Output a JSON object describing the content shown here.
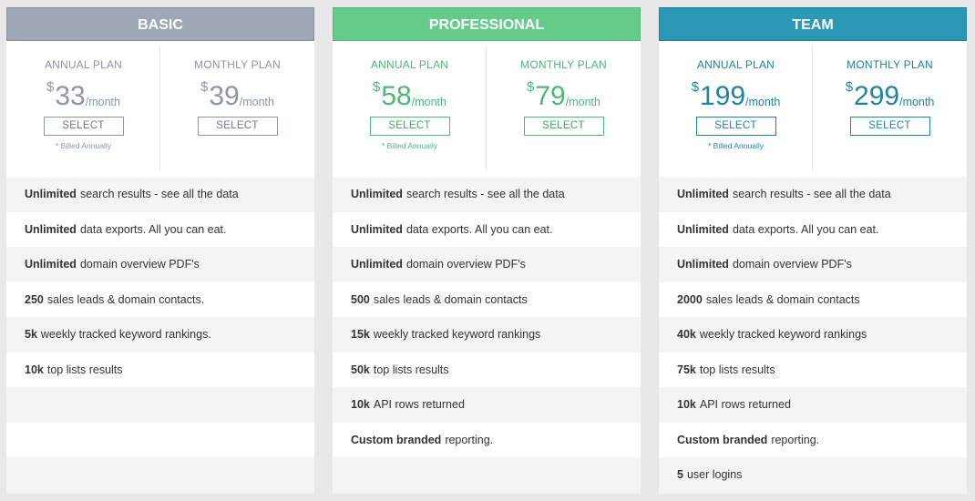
{
  "colors": {
    "basic": "#a0a8b8",
    "professional": "#64cb88",
    "team": "#2b98b5"
  },
  "plans": [
    {
      "name": "BASIC",
      "annual_label": "ANNUAL PLAN",
      "monthly_label": "MONTHLY PLAN",
      "currency": "$",
      "annual_price": "33",
      "monthly_price": "39",
      "per": "/month",
      "select_label": "SELECT",
      "billed_note": "* Billed Annually",
      "features": [
        {
          "bold": "Unlimited",
          "text": "search results - see all the data"
        },
        {
          "bold": "Unlimited",
          "text": "data exports. All you can eat."
        },
        {
          "bold": "Unlimited",
          "text": "domain overview PDF's"
        },
        {
          "bold": "250",
          "text": "sales leads & domain contacts."
        },
        {
          "bold": "5k",
          "text": "weekly tracked keyword rankings."
        },
        {
          "bold": "10k",
          "text": "top lists results"
        },
        {
          "bold": "",
          "text": ""
        },
        {
          "bold": "",
          "text": ""
        },
        {
          "bold": "",
          "text": ""
        }
      ]
    },
    {
      "name": "PROFESSIONAL",
      "annual_label": "ANNUAL PLAN",
      "monthly_label": "MONTHLY PLAN",
      "currency": "$",
      "annual_price": "58",
      "monthly_price": "79",
      "per": "/month",
      "select_label": "SELECT",
      "billed_note": "* Billed Annually",
      "features": [
        {
          "bold": "Unlimited",
          "text": "search results - see all the data"
        },
        {
          "bold": "Unlimited",
          "text": "data exports. All you can eat."
        },
        {
          "bold": "Unlimited",
          "text": "domain overview PDF's"
        },
        {
          "bold": "500",
          "text": "sales leads & domain contacts"
        },
        {
          "bold": "15k",
          "text": "weekly tracked keyword rankings"
        },
        {
          "bold": "50k",
          "text": "top lists results"
        },
        {
          "bold": "10k",
          "text": "API rows returned"
        },
        {
          "bold": "Custom branded",
          "text": "reporting."
        },
        {
          "bold": "",
          "text": ""
        }
      ]
    },
    {
      "name": "TEAM",
      "annual_label": "ANNUAL PLAN",
      "monthly_label": "MONTHLY PLAN",
      "currency": "$",
      "annual_price": "199",
      "monthly_price": "299",
      "per": "/month",
      "select_label": "SELECT",
      "billed_note": "* Billed Annually",
      "features": [
        {
          "bold": "Unlimited",
          "text": "search results - see all the data"
        },
        {
          "bold": "Unlimited",
          "text": "data exports. All you can eat."
        },
        {
          "bold": "Unlimited",
          "text": "domain overview PDF's"
        },
        {
          "bold": "2000",
          "text": "sales leads & domain contacts"
        },
        {
          "bold": "40k",
          "text": "weekly tracked keyword rankings"
        },
        {
          "bold": "75k",
          "text": "top lists results"
        },
        {
          "bold": "10k",
          "text": "API rows returned"
        },
        {
          "bold": "Custom branded",
          "text": "reporting."
        },
        {
          "bold": "5",
          "text": "user logins"
        }
      ]
    }
  ]
}
